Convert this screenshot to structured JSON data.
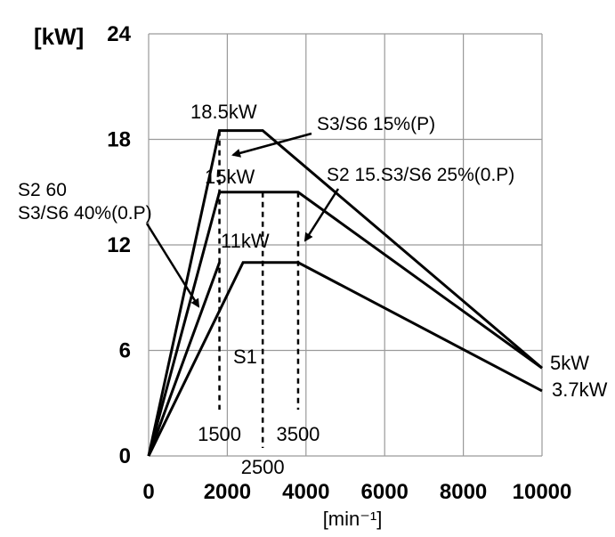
{
  "chart_data": {
    "type": "line",
    "ylabel": "[kW]",
    "xlabel": "[min⁻¹]",
    "xlim": [
      0,
      10000
    ],
    "ylim": [
      0,
      24
    ],
    "x_ticks": [
      "0",
      "2000",
      "4000",
      "6000",
      "8000",
      "10000"
    ],
    "y_ticks": [
      "0",
      "6",
      "12",
      "18",
      "24"
    ],
    "grid": true,
    "series": [
      {
        "name": "S3/S6 15%(P)",
        "points": [
          [
            0,
            0
          ],
          [
            1800,
            18.5
          ],
          [
            2900,
            18.5
          ],
          [
            10000,
            5.0
          ]
        ]
      },
      {
        "name": "S2 15.S3/S6 25%(0.P)",
        "points": [
          [
            0,
            0
          ],
          [
            1800,
            15.0
          ],
          [
            3800,
            15.0
          ],
          [
            10000,
            5.0
          ]
        ]
      },
      {
        "name": "S1",
        "points": [
          [
            0,
            0
          ],
          [
            2400,
            11.0
          ],
          [
            3800,
            11.0
          ],
          [
            10000,
            3.7
          ]
        ]
      },
      {
        "name": "S2 60 S3/S6 40%(0.P)",
        "points": [
          [
            0,
            0
          ],
          [
            1800,
            11.0
          ]
        ]
      }
    ],
    "guides": [
      {
        "x": 1800,
        "y": 18.5,
        "label": "1500"
      },
      {
        "x": 2900,
        "y": 15.0,
        "label": "2500"
      },
      {
        "x": 3800,
        "y": 15.0,
        "label": "3500"
      }
    ],
    "annotations": {
      "p_18_5": "18.5kW",
      "p_15": "15kW",
      "p_11": "11kW",
      "p_5": "5kW",
      "p_3_7": "3.7kW",
      "s3s6_15": "S3/S6 15%(P)",
      "s2_15": "S2 15.S3/S6 25%(0.P)",
      "s2_60_line1": "S2 60",
      "s2_60_line2": "S3/S6 40%(0.P)",
      "s1": "S1"
    }
  }
}
